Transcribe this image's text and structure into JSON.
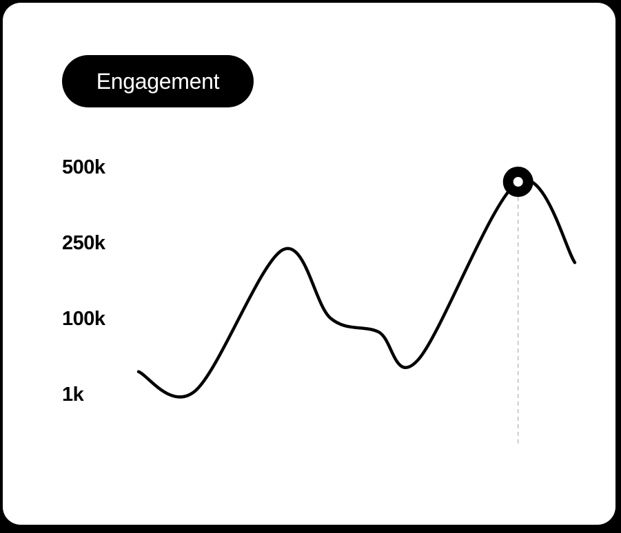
{
  "card": {
    "title": "Engagement"
  },
  "colors": {
    "background": "#ffffff",
    "line": "#000000",
    "guide": "#cccccc",
    "pill": "#000000",
    "pill_text": "#ffffff"
  },
  "chart_data": {
    "type": "line",
    "title": "Engagement",
    "xlabel": "",
    "ylabel": "",
    "y_ticks": [
      "500k",
      "250k",
      "100k",
      "1k"
    ],
    "y_scale": "non-linear (tick labels evenly spaced)",
    "grid": false,
    "legend": "none",
    "series": [
      {
        "points": [
          {
            "x": 0.0,
            "y": 30000
          },
          {
            "x": 0.13,
            "y": 5000
          },
          {
            "x": 0.33,
            "y": 235000
          },
          {
            "x": 0.44,
            "y": 100000
          },
          {
            "x": 0.55,
            "y": 82000
          },
          {
            "x": 0.64,
            "y": 45000
          },
          {
            "x": 0.87,
            "y": 450000
          },
          {
            "x": 1.0,
            "y": 210000
          }
        ]
      }
    ],
    "highlight": {
      "x": 0.87,
      "y": 450000
    }
  }
}
